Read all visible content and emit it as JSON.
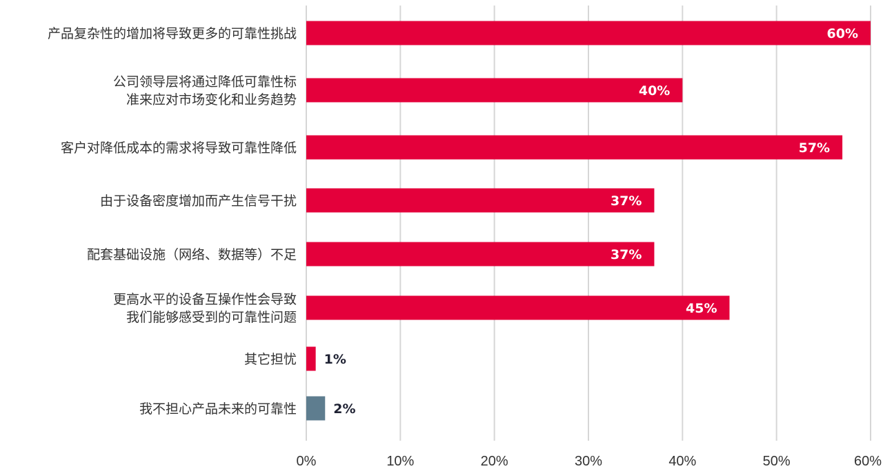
{
  "chart_data": {
    "type": "bar",
    "orientation": "horizontal",
    "categories": [
      [
        "产品复杂性的增加将导致更多的可靠性挑战"
      ],
      [
        "公司领导层将通过降低可靠性标",
        "准来应对市场变化和业务趋势"
      ],
      [
        "客户对降低成本的需求将导致可靠性降低"
      ],
      [
        "由于设备密度增加而产生信号干扰"
      ],
      [
        "配套基础设施（网络、数据等）不足"
      ],
      [
        "更高水平的设备互操作性会导致",
        "我们能够感受到的可靠性问题"
      ],
      [
        "其它担忧"
      ],
      [
        "我不担心产品未来的可靠性"
      ]
    ],
    "values": [
      60,
      40,
      57,
      37,
      37,
      45,
      1,
      2
    ],
    "value_labels": [
      "60%",
      "40%",
      "57%",
      "37%",
      "37%",
      "45%",
      "1%",
      "2%"
    ],
    "bar_colors": [
      "#e4003b",
      "#e4003b",
      "#e4003b",
      "#e4003b",
      "#e4003b",
      "#e4003b",
      "#e4003b",
      "#5e7d8f"
    ],
    "xlim": [
      0,
      60
    ],
    "x_ticks": [
      0,
      10,
      20,
      30,
      40,
      50,
      60
    ],
    "x_tick_labels": [
      "0%",
      "10%",
      "20%",
      "30%",
      "40%",
      "50%",
      "60%"
    ],
    "grid": true,
    "legend": "none"
  }
}
